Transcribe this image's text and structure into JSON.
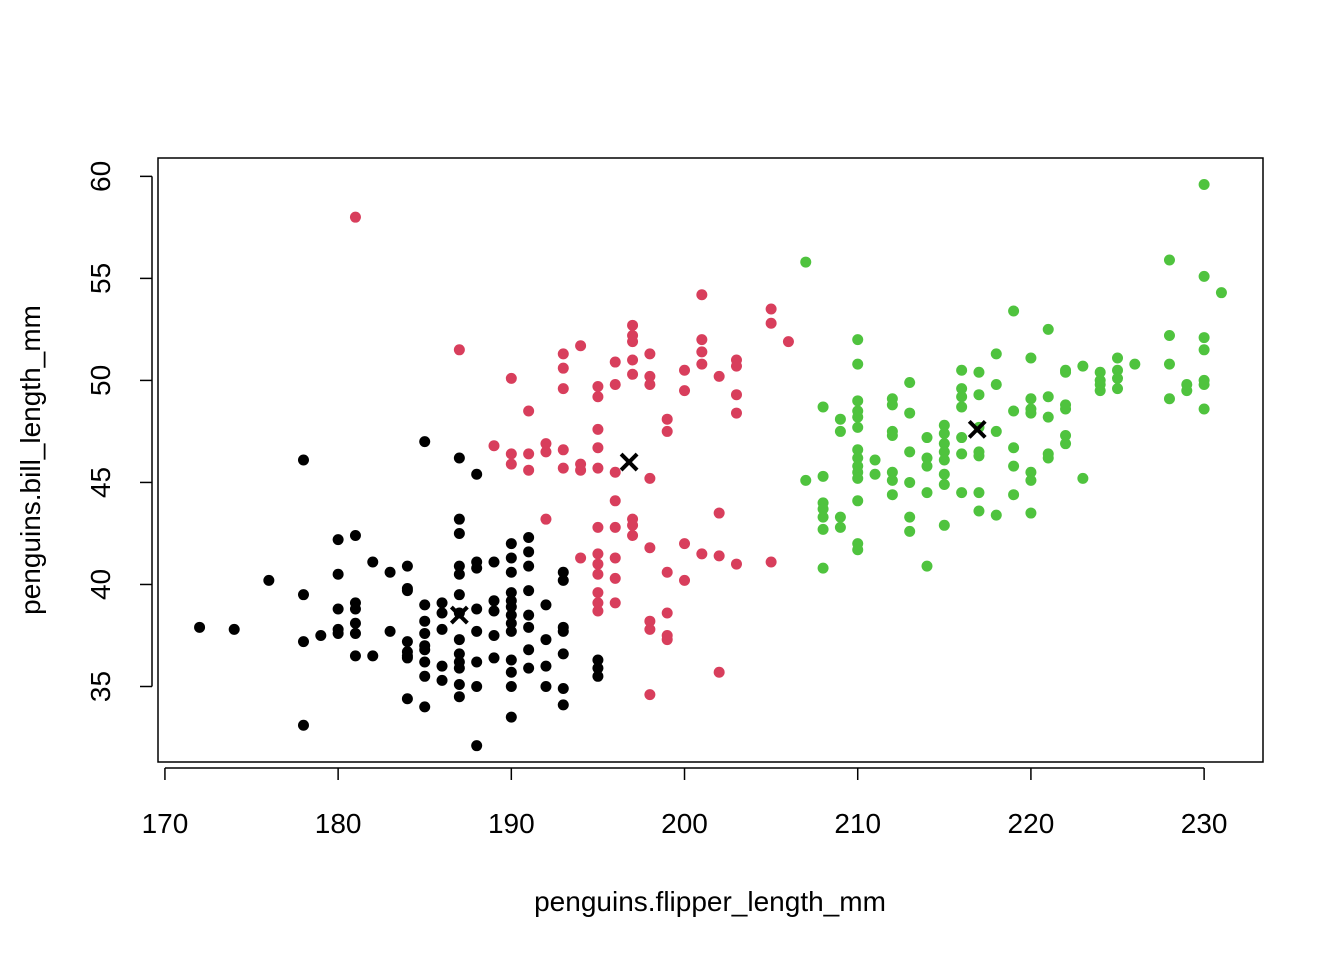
{
  "chart_data": {
    "type": "scatter",
    "title": "",
    "xlabel": "penguins.flipper_length_mm",
    "ylabel": "penguins.bill_length_mm",
    "xlim": [
      169.6,
      233.4
    ],
    "ylim": [
      31.3,
      60.9
    ],
    "x_ticks": [
      170,
      180,
      190,
      200,
      210,
      220,
      230
    ],
    "y_ticks": [
      35,
      40,
      45,
      50,
      55,
      60
    ],
    "grid": false,
    "legend": "none",
    "series": [
      {
        "color": "#000000",
        "points": [
          [
            172,
            37.9
          ],
          [
            174,
            37.8
          ],
          [
            176,
            40.2
          ],
          [
            178,
            46.1
          ],
          [
            178,
            39.5
          ],
          [
            178,
            37.2
          ],
          [
            178,
            33.1
          ],
          [
            179,
            37.5
          ],
          [
            180,
            42.2
          ],
          [
            180,
            40.5
          ],
          [
            180,
            38.8
          ],
          [
            180,
            37.8
          ],
          [
            180,
            37.6
          ],
          [
            181,
            42.4
          ],
          [
            181,
            39.1
          ],
          [
            181,
            38.8
          ],
          [
            181,
            38.1
          ],
          [
            181,
            37.6
          ],
          [
            181,
            36.5
          ],
          [
            182,
            41.1
          ],
          [
            182,
            36.5
          ],
          [
            183,
            40.6
          ],
          [
            183,
            37.7
          ],
          [
            184,
            40.9
          ],
          [
            184,
            39.8
          ],
          [
            184,
            39.7
          ],
          [
            184,
            37.2
          ],
          [
            184,
            36.7
          ],
          [
            184,
            36.5
          ],
          [
            184,
            36.4
          ],
          [
            184,
            34.4
          ],
          [
            185,
            47.0
          ],
          [
            185,
            39.0
          ],
          [
            185,
            38.2
          ],
          [
            185,
            37.6
          ],
          [
            185,
            37.0
          ],
          [
            185,
            36.8
          ],
          [
            185,
            36.2
          ],
          [
            185,
            35.5
          ],
          [
            185,
            34.0
          ],
          [
            186,
            39.1
          ],
          [
            186,
            38.6
          ],
          [
            186,
            37.8
          ],
          [
            186,
            36.0
          ],
          [
            186,
            35.3
          ],
          [
            187,
            46.2
          ],
          [
            187,
            43.2
          ],
          [
            187,
            42.5
          ],
          [
            187,
            40.9
          ],
          [
            187,
            40.5
          ],
          [
            187,
            39.5
          ],
          [
            187,
            38.6
          ],
          [
            187,
            37.3
          ],
          [
            187,
            36.6
          ],
          [
            187,
            36.2
          ],
          [
            187,
            35.9
          ],
          [
            187,
            35.1
          ],
          [
            187,
            34.5
          ],
          [
            188,
            45.4
          ],
          [
            188,
            41.1
          ],
          [
            188,
            40.8
          ],
          [
            188,
            38.8
          ],
          [
            188,
            37.7
          ],
          [
            188,
            36.2
          ],
          [
            188,
            35.0
          ],
          [
            188,
            32.1
          ],
          [
            189,
            41.1
          ],
          [
            189,
            39.2
          ],
          [
            189,
            38.7
          ],
          [
            189,
            37.5
          ],
          [
            189,
            36.4
          ],
          [
            190,
            42.0
          ],
          [
            190,
            41.3
          ],
          [
            190,
            40.6
          ],
          [
            190,
            39.6
          ],
          [
            190,
            39.2
          ],
          [
            190,
            38.9
          ],
          [
            190,
            38.5
          ],
          [
            190,
            38.1
          ],
          [
            190,
            37.7
          ],
          [
            190,
            36.3
          ],
          [
            190,
            35.7
          ],
          [
            190,
            35.0
          ],
          [
            190,
            33.5
          ],
          [
            191,
            42.3
          ],
          [
            191,
            41.6
          ],
          [
            191,
            40.9
          ],
          [
            191,
            39.7
          ],
          [
            191,
            38.5
          ],
          [
            191,
            37.9
          ],
          [
            191,
            36.8
          ],
          [
            191,
            35.9
          ],
          [
            192,
            39.0
          ],
          [
            192,
            37.3
          ],
          [
            192,
            36.0
          ],
          [
            192,
            35.0
          ],
          [
            193,
            40.6
          ],
          [
            193,
            40.2
          ],
          [
            193,
            37.9
          ],
          [
            193,
            37.7
          ],
          [
            193,
            36.6
          ],
          [
            193,
            34.9
          ],
          [
            193,
            34.1
          ],
          [
            195,
            36.3
          ],
          [
            195,
            35.9
          ],
          [
            195,
            35.5
          ]
        ]
      },
      {
        "color": "#d83e5c",
        "points": [
          [
            181,
            58.0
          ],
          [
            187,
            51.5
          ],
          [
            189,
            46.8
          ],
          [
            190,
            50.1
          ],
          [
            190,
            46.4
          ],
          [
            190,
            45.9
          ],
          [
            191,
            48.5
          ],
          [
            191,
            46.4
          ],
          [
            191,
            45.6
          ],
          [
            192,
            46.9
          ],
          [
            192,
            46.5
          ],
          [
            192,
            43.2
          ],
          [
            193,
            51.3
          ],
          [
            193,
            50.6
          ],
          [
            193,
            49.6
          ],
          [
            193,
            46.6
          ],
          [
            193,
            45.7
          ],
          [
            194,
            51.7
          ],
          [
            194,
            45.9
          ],
          [
            194,
            45.6
          ],
          [
            194,
            41.3
          ],
          [
            195,
            49.7
          ],
          [
            195,
            49.2
          ],
          [
            195,
            47.6
          ],
          [
            195,
            46.7
          ],
          [
            195,
            45.7
          ],
          [
            195,
            42.8
          ],
          [
            195,
            41.5
          ],
          [
            195,
            41.0
          ],
          [
            195,
            40.5
          ],
          [
            195,
            39.6
          ],
          [
            195,
            39.1
          ],
          [
            195,
            38.7
          ],
          [
            196,
            50.9
          ],
          [
            196,
            49.8
          ],
          [
            196,
            45.5
          ],
          [
            196,
            44.1
          ],
          [
            196,
            42.8
          ],
          [
            196,
            41.3
          ],
          [
            196,
            40.3
          ],
          [
            196,
            39.1
          ],
          [
            197,
            52.7
          ],
          [
            197,
            52.2
          ],
          [
            197,
            51.9
          ],
          [
            197,
            51.0
          ],
          [
            197,
            50.3
          ],
          [
            197,
            43.2
          ],
          [
            197,
            42.9
          ],
          [
            197,
            42.4
          ],
          [
            198,
            51.3
          ],
          [
            198,
            50.2
          ],
          [
            198,
            49.8
          ],
          [
            198,
            45.2
          ],
          [
            198,
            41.8
          ],
          [
            198,
            38.2
          ],
          [
            198,
            37.8
          ],
          [
            198,
            34.6
          ],
          [
            199,
            48.1
          ],
          [
            199,
            47.5
          ],
          [
            199,
            40.6
          ],
          [
            199,
            38.6
          ],
          [
            199,
            37.5
          ],
          [
            199,
            37.3
          ],
          [
            200,
            50.5
          ],
          [
            200,
            49.5
          ],
          [
            200,
            42.0
          ],
          [
            200,
            40.2
          ],
          [
            201,
            54.2
          ],
          [
            201,
            52.0
          ],
          [
            201,
            51.4
          ],
          [
            201,
            50.8
          ],
          [
            201,
            41.5
          ],
          [
            202,
            50.2
          ],
          [
            202,
            43.5
          ],
          [
            202,
            41.4
          ],
          [
            202,
            35.7
          ],
          [
            203,
            51.0
          ],
          [
            203,
            50.7
          ],
          [
            203,
            49.3
          ],
          [
            203,
            48.4
          ],
          [
            203,
            41.0
          ],
          [
            205,
            53.5
          ],
          [
            205,
            52.8
          ],
          [
            205,
            41.1
          ],
          [
            206,
            51.9
          ]
        ]
      },
      {
        "color": "#4fc33e",
        "points": [
          [
            207,
            55.8
          ],
          [
            207,
            45.1
          ],
          [
            208,
            48.7
          ],
          [
            208,
            45.3
          ],
          [
            208,
            44.0
          ],
          [
            208,
            43.7
          ],
          [
            208,
            43.3
          ],
          [
            208,
            42.7
          ],
          [
            208,
            40.8
          ],
          [
            209,
            48.1
          ],
          [
            209,
            47.5
          ],
          [
            209,
            43.3
          ],
          [
            209,
            42.8
          ],
          [
            210,
            52.0
          ],
          [
            210,
            50.8
          ],
          [
            210,
            49.0
          ],
          [
            210,
            48.5
          ],
          [
            210,
            48.2
          ],
          [
            210,
            47.7
          ],
          [
            210,
            46.6
          ],
          [
            210,
            46.2
          ],
          [
            210,
            45.8
          ],
          [
            210,
            45.5
          ],
          [
            210,
            45.2
          ],
          [
            210,
            44.1
          ],
          [
            210,
            42.0
          ],
          [
            210,
            41.7
          ],
          [
            211,
            46.1
          ],
          [
            211,
            45.4
          ],
          [
            212,
            49.1
          ],
          [
            212,
            48.8
          ],
          [
            212,
            47.5
          ],
          [
            212,
            47.3
          ],
          [
            212,
            45.5
          ],
          [
            212,
            45.1
          ],
          [
            212,
            44.4
          ],
          [
            213,
            49.9
          ],
          [
            213,
            48.4
          ],
          [
            213,
            46.5
          ],
          [
            213,
            45.0
          ],
          [
            213,
            43.3
          ],
          [
            213,
            42.6
          ],
          [
            214,
            47.2
          ],
          [
            214,
            46.2
          ],
          [
            214,
            45.8
          ],
          [
            214,
            44.5
          ],
          [
            214,
            40.9
          ],
          [
            215,
            47.8
          ],
          [
            215,
            47.4
          ],
          [
            215,
            46.9
          ],
          [
            215,
            46.5
          ],
          [
            215,
            46.1
          ],
          [
            215,
            45.4
          ],
          [
            215,
            44.9
          ],
          [
            215,
            42.9
          ],
          [
            216,
            50.5
          ],
          [
            216,
            49.6
          ],
          [
            216,
            49.2
          ],
          [
            216,
            48.7
          ],
          [
            216,
            47.2
          ],
          [
            216,
            46.4
          ],
          [
            216,
            44.5
          ],
          [
            217,
            50.4
          ],
          [
            217,
            49.3
          ],
          [
            217,
            47.7
          ],
          [
            217,
            46.5
          ],
          [
            217,
            46.3
          ],
          [
            217,
            44.5
          ],
          [
            217,
            43.6
          ],
          [
            218,
            51.3
          ],
          [
            218,
            49.8
          ],
          [
            218,
            47.5
          ],
          [
            218,
            43.4
          ],
          [
            219,
            53.4
          ],
          [
            219,
            48.5
          ],
          [
            219,
            46.7
          ],
          [
            219,
            45.8
          ],
          [
            219,
            44.4
          ],
          [
            220,
            51.1
          ],
          [
            220,
            49.1
          ],
          [
            220,
            48.6
          ],
          [
            220,
            48.4
          ],
          [
            220,
            45.5
          ],
          [
            220,
            45.1
          ],
          [
            220,
            43.5
          ],
          [
            221,
            52.5
          ],
          [
            221,
            49.2
          ],
          [
            221,
            48.2
          ],
          [
            221,
            46.4
          ],
          [
            221,
            46.2
          ],
          [
            222,
            50.5
          ],
          [
            222,
            50.4
          ],
          [
            222,
            48.8
          ],
          [
            222,
            48.6
          ],
          [
            222,
            47.3
          ],
          [
            222,
            46.9
          ],
          [
            223,
            50.7
          ],
          [
            223,
            45.2
          ],
          [
            224,
            50.4
          ],
          [
            224,
            50.0
          ],
          [
            224,
            49.8
          ],
          [
            224,
            49.5
          ],
          [
            225,
            51.1
          ],
          [
            225,
            50.5
          ],
          [
            225,
            50.1
          ],
          [
            225,
            49.6
          ],
          [
            226,
            50.8
          ],
          [
            228,
            55.9
          ],
          [
            228,
            52.2
          ],
          [
            228,
            50.8
          ],
          [
            228,
            49.1
          ],
          [
            229,
            49.8
          ],
          [
            229,
            49.5
          ],
          [
            230,
            59.6
          ],
          [
            230,
            55.1
          ],
          [
            230,
            52.1
          ],
          [
            230,
            51.5
          ],
          [
            230,
            50.0
          ],
          [
            230,
            49.8
          ],
          [
            230,
            48.6
          ],
          [
            231,
            54.3
          ]
        ]
      }
    ],
    "centroids": [
      {
        "x": 187.0,
        "y": 38.5,
        "color": "#000000"
      },
      {
        "x": 196.8,
        "y": 46.0,
        "color": "#000000"
      },
      {
        "x": 216.9,
        "y": 47.6,
        "color": "#000000"
      }
    ]
  }
}
